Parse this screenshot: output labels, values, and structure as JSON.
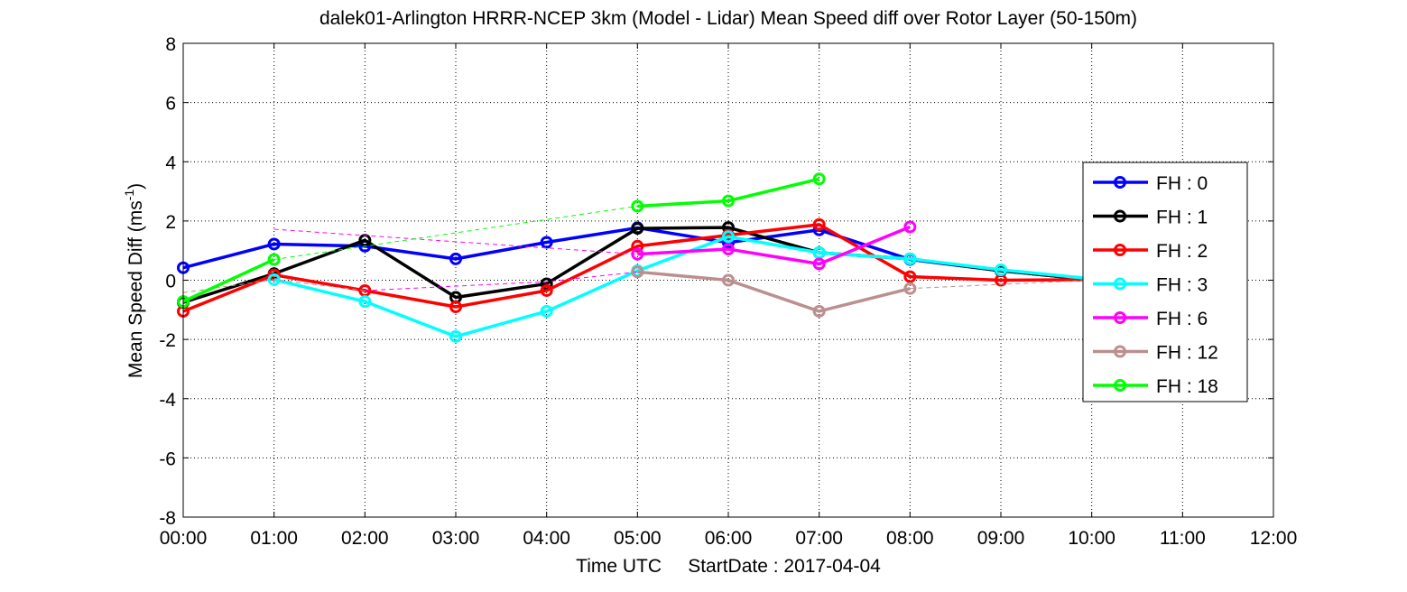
{
  "chart_data": {
    "type": "line",
    "title": "dalek01-Arlington HRRR-NCEP 3km (Model - Lidar) Mean Speed diff over Rotor Layer (50-150m)",
    "xlabel": "Time UTC     StartDate : 2017-04-04",
    "ylabel_main": "Mean Speed Diff (ms",
    "ylabel_sup": "-1",
    "ylabel_end": ")",
    "xlim": [
      0,
      12
    ],
    "ylim": [
      -8,
      8
    ],
    "x_tick_labels": [
      "00:00",
      "01:00",
      "02:00",
      "03:00",
      "04:00",
      "05:00",
      "06:00",
      "07:00",
      "08:00",
      "09:00",
      "10:00",
      "11:00",
      "12:00"
    ],
    "y_ticks": [
      -8,
      -6,
      -4,
      -2,
      0,
      2,
      4,
      6,
      8
    ],
    "y_tick_labels": [
      "-8",
      "-6",
      "-4",
      "-2",
      "0",
      "2",
      "4",
      "6",
      "8"
    ],
    "grid": true,
    "legend_position": "right",
    "series": [
      {
        "name": "FH : 0",
        "color": "#0000ff",
        "segments": [
          [
            [
              0,
              0.42
            ],
            [
              1,
              1.22
            ],
            [
              2,
              1.15
            ],
            [
              3,
              0.72
            ],
            [
              4,
              1.28
            ],
            [
              5,
              1.77
            ],
            [
              6,
              1.27
            ],
            [
              7,
              1.7
            ],
            [
              8,
              0.7
            ],
            [
              9,
              0.32
            ],
            [
              10,
              0.02
            ]
          ]
        ]
      },
      {
        "name": "FH : 1",
        "color": "#000000",
        "segments": [
          [
            [
              0,
              -0.75
            ],
            [
              1,
              0.22
            ],
            [
              2,
              1.35
            ],
            [
              3,
              -0.58
            ],
            [
              4,
              -0.12
            ],
            [
              5,
              1.75
            ],
            [
              6,
              1.78
            ],
            [
              7,
              0.93
            ],
            [
              8,
              0.72
            ],
            [
              9,
              0.32
            ],
            [
              10,
              0.02
            ]
          ]
        ]
      },
      {
        "name": "FH : 2",
        "color": "#ff0000",
        "segments": [
          [
            [
              0,
              -1.05
            ],
            [
              1,
              0.18
            ],
            [
              2,
              -0.35
            ],
            [
              3,
              -0.9
            ],
            [
              4,
              -0.35
            ],
            [
              5,
              1.15
            ],
            [
              6,
              1.52
            ],
            [
              7,
              1.88
            ],
            [
              8,
              0.12
            ],
            [
              9,
              0.0
            ],
            [
              10,
              0.02
            ]
          ]
        ]
      },
      {
        "name": "FH : 3",
        "color": "#00ffff",
        "segments": [
          [
            [
              1,
              0.02
            ],
            [
              2,
              -0.72
            ],
            [
              3,
              -1.9
            ],
            [
              4,
              -1.05
            ],
            [
              5,
              0.32
            ],
            [
              6,
              1.47
            ],
            [
              7,
              0.93
            ],
            [
              8,
              0.72
            ],
            [
              9,
              0.35
            ],
            [
              10,
              0.05
            ]
          ]
        ]
      },
      {
        "name": "FH : 6",
        "color": "#ff00ff",
        "segments": [
          [
            [
              5,
              0.88
            ],
            [
              6,
              1.05
            ],
            [
              7,
              0.55
            ],
            [
              8,
              1.8
            ]
          ]
        ],
        "dashed": [
          [
            [
              1,
              1.72
            ],
            [
              3,
              1.3
            ],
            [
              5,
              0.88
            ]
          ],
          [
            [
              2,
              -0.35
            ],
            [
              4,
              -0.05
            ],
            [
              5,
              0.28
            ]
          ]
        ]
      },
      {
        "name": "FH : 12",
        "color": "#bc8f8f",
        "segments": [
          [
            [
              5,
              0.28
            ],
            [
              6,
              0.0
            ],
            [
              7,
              -1.05
            ],
            [
              8,
              -0.28
            ]
          ]
        ],
        "dashed": [
          [
            [
              0,
              -0.42
            ],
            [
              1,
              0.02
            ],
            [
              2,
              -0.35
            ]
          ],
          [
            [
              8,
              -0.28
            ],
            [
              10,
              0.0
            ]
          ]
        ]
      },
      {
        "name": "FH : 18",
        "color": "#00ff00",
        "segments": [
          [
            [
              0,
              -0.72
            ],
            [
              1,
              0.7
            ]
          ],
          [
            [
              5,
              2.5
            ],
            [
              6,
              2.68
            ],
            [
              7,
              3.42
            ]
          ]
        ],
        "dashed": [
          [
            [
              1,
              0.7
            ],
            [
              5,
              2.5
            ]
          ]
        ]
      }
    ]
  }
}
